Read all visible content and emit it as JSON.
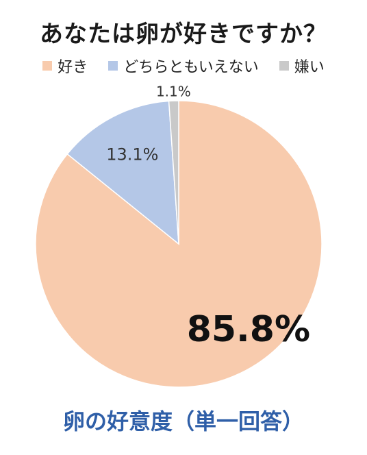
{
  "chart_data": {
    "type": "pie",
    "title": "あなたは卵が好きですか？",
    "subtitle": "卵の好意度（単一回答）",
    "categories": [
      "好き",
      "どちらともいえない",
      "嫌い"
    ],
    "values": [
      85.8,
      13.1,
      1.1
    ],
    "value_labels": [
      "85.8%",
      "13.1%",
      "1.1%"
    ],
    "colors": [
      "#f8cbad",
      "#b4c7e7",
      "#c9c9c9"
    ],
    "legend_position": "top",
    "start_angle": "12 o'clock",
    "direction": "clockwise"
  }
}
